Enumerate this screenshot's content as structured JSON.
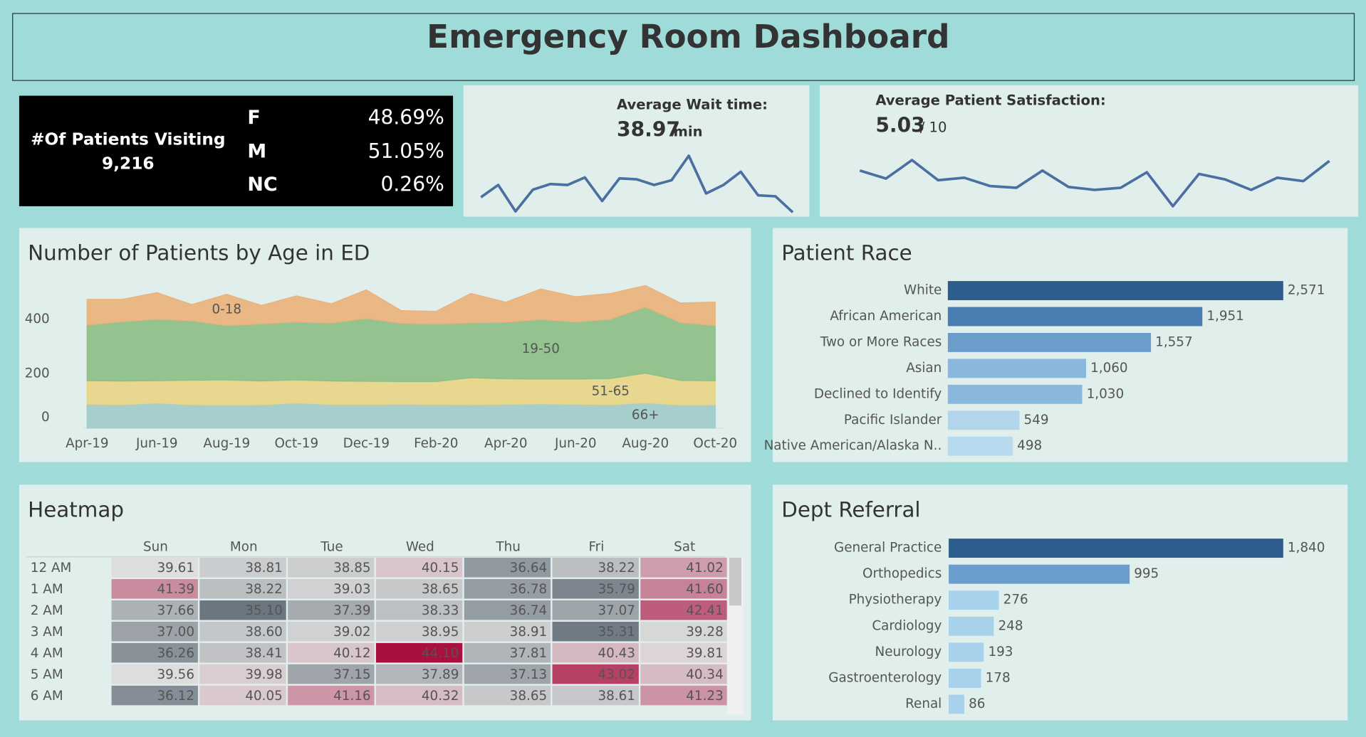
{
  "title": "Emergency Room Dashboard",
  "kpis": {
    "patients_label": "#Of Patients Visiting",
    "patients": "9,216",
    "gender": [
      {
        "label": "F",
        "value": "48.69%"
      },
      {
        "label": "M",
        "value": "51.05%"
      },
      {
        "label": "NC",
        "value": "0.26%"
      }
    ]
  },
  "chart_data": [
    {
      "type": "area",
      "title": "Number of Patients by Age in ED",
      "categories": [
        "Apr-19",
        null,
        "Jun-19",
        null,
        "Aug-19",
        null,
        "Oct-19",
        null,
        "Dec-19",
        null,
        "Feb-20",
        null,
        "Apr-20",
        null,
        "Jun-20",
        null,
        "Aug-20",
        null,
        "Oct-20"
      ],
      "series": [
        {
          "name": "66+",
          "color": "#9fcac9",
          "values": [
            88,
            86,
            92,
            86,
            85,
            86,
            92,
            87,
            87,
            88,
            87,
            86,
            88,
            89,
            88,
            86,
            93,
            85,
            86
          ]
        },
        {
          "name": "51-65",
          "color": "#e8d485",
          "values": [
            86,
            87,
            82,
            90,
            92,
            87,
            85,
            86,
            85,
            83,
            84,
            99,
            93,
            91,
            92,
            96,
            109,
            90,
            88
          ]
        },
        {
          "name": "19-50",
          "color": "#8cbe86",
          "values": [
            205,
            218,
            226,
            218,
            200,
            210,
            213,
            213,
            231,
            214,
            211,
            202,
            208,
            219,
            210,
            218,
            243,
            213,
            203
          ]
        },
        {
          "name": "0-18",
          "color": "#ebb17a",
          "values": [
            94,
            82,
            98,
            60,
            115,
            68,
            96,
            71,
            105,
            47,
            47,
            108,
            74,
            112,
            93,
            95,
            79,
            72,
            86
          ]
        }
      ],
      "ylim": [
        0,
        550
      ],
      "yticks": [
        0,
        200,
        400
      ],
      "grid": false
    },
    {
      "type": "hbar",
      "title": "Patient Race",
      "categories": [
        "White",
        "African American",
        "Two or More Races",
        "Asian",
        "Declined to Identify",
        "Pacific Islander",
        "Native American/Alaska N.."
      ],
      "values": [
        2571,
        1951,
        1557,
        1060,
        1030,
        549,
        498
      ],
      "value_labels": [
        "2,571",
        "1,951",
        "1,557",
        "1,060",
        "1,030",
        "549",
        "498"
      ],
      "colors": [
        "#2c5d8c",
        "#4a7db2",
        "#6a9dcb",
        "#8ab7dc",
        "#8ab7dc",
        "#b2d5eb",
        "#b8daee"
      ]
    },
    {
      "type": "heatmap",
      "title": "Heatmap",
      "columns": [
        "Sun",
        "Mon",
        "Tue",
        "Wed",
        "Thu",
        "Fri",
        "Sat"
      ],
      "rows": [
        "12 AM",
        "1 AM",
        "2 AM",
        "3 AM",
        "4 AM",
        "5 AM",
        "6 AM"
      ],
      "values": [
        [
          39.61,
          38.81,
          38.85,
          40.15,
          36.64,
          38.22,
          41.02
        ],
        [
          41.39,
          38.22,
          39.03,
          38.65,
          36.78,
          35.79,
          41.6
        ],
        [
          37.66,
          35.1,
          37.39,
          38.33,
          36.74,
          37.07,
          42.41
        ],
        [
          37,
          38.6,
          39.02,
          38.95,
          38.91,
          35.31,
          39.28
        ],
        [
          36.26,
          38.41,
          40.12,
          44.1,
          37.81,
          40.43,
          39.81
        ],
        [
          39.56,
          39.98,
          37.15,
          37.89,
          37.13,
          43.02,
          40.34
        ],
        [
          36.12,
          40.05,
          41.16,
          40.32,
          38.65,
          38.61,
          41.23
        ]
      ],
      "value_labels": [
        [
          "39.61",
          "38.81",
          "38.85",
          "40.15",
          "36.64",
          "38.22",
          "41.02"
        ],
        [
          "41.39",
          "38.22",
          "39.03",
          "38.65",
          "36.78",
          "35.79",
          "41.60"
        ],
        [
          "37.66",
          "35.10",
          "37.39",
          "38.33",
          "36.74",
          "37.07",
          "42.41"
        ],
        [
          "37.00",
          "38.60",
          "39.02",
          "38.95",
          "38.91",
          "35.31",
          "39.28"
        ],
        [
          "36.26",
          "38.41",
          "40.12",
          "44.10",
          "37.81",
          "40.43",
          "39.81"
        ],
        [
          "39.56",
          "39.98",
          "37.15",
          "37.89",
          "37.13",
          "43.02",
          "40.34"
        ],
        [
          "36.12",
          "40.05",
          "41.16",
          "40.32",
          "38.65",
          "38.61",
          "41.23"
        ]
      ],
      "color_low": "#6b7681",
      "color_mid": "#dedede",
      "color_high": "#a90f3f"
    },
    {
      "type": "hbar",
      "title": "Dept Referral",
      "categories": [
        "General Practice",
        "Orthopedics",
        "Physiotherapy",
        "Cardiology",
        "Neurology",
        "Gastroenterology",
        "Renal"
      ],
      "values": [
        1840,
        995,
        276,
        248,
        193,
        178,
        86
      ],
      "value_labels": [
        "1,840",
        "995",
        "276",
        "248",
        "193",
        "178",
        "86"
      ],
      "colors": [
        "#2c5d8c",
        "#6a9dcb",
        "#a8d1ec",
        "#a8d1ec",
        "#a8d1ec",
        "#a8d1ec",
        "#a8d1ec"
      ]
    },
    {
      "type": "line",
      "title": "Average Wait time:",
      "kpi": "38.97",
      "kpi_unit": "min",
      "color": "#4a6fa0",
      "values": [
        37.6,
        38.9,
        36.1,
        38.4,
        39.0,
        38.9,
        39.7,
        37.2,
        39.6,
        39.5,
        38.9,
        39.4,
        42.0,
        38.0,
        38.9,
        40.3,
        37.8,
        37.7,
        36.0
      ]
    },
    {
      "type": "line",
      "title": "Average Patient Satisfaction:",
      "kpi": "5.03",
      "kpi_unit": "/ 10",
      "color": "#4a6fa0",
      "values": [
        5.35,
        5.16,
        5.6,
        5.12,
        5.18,
        4.98,
        4.94,
        5.35,
        4.96,
        4.89,
        4.94,
        5.31,
        4.5,
        5.27,
        5.14,
        4.89,
        5.18,
        5.1,
        5.58
      ]
    }
  ]
}
